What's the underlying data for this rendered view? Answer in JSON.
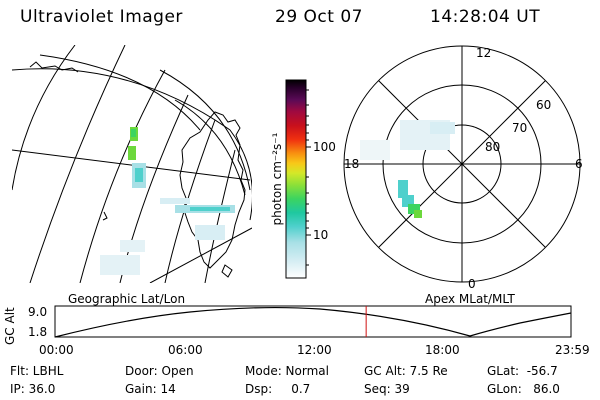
{
  "header": {
    "instrument": "Ultraviolet Imager",
    "date": "29 Oct 07",
    "time": "14:28:04 UT"
  },
  "colorbar": {
    "unit_label": "photon cm⁻²s⁻¹",
    "tick_100": "100",
    "tick_10": "10",
    "colors": [
      "#d8eef4",
      "#a8e0e6",
      "#4fd0cc",
      "#1fc8a0",
      "#3cd460",
      "#8ce038",
      "#d4e828",
      "#f8c818",
      "#f89010",
      "#f03010",
      "#c8101c",
      "#a00a40",
      "#5a0a56",
      "#28002a",
      "#000000"
    ]
  },
  "geo_map": {
    "label": "Geographic Lat/Lon"
  },
  "polar_map": {
    "label": "Apex MLat/MLT",
    "mlt_labels": {
      "top": "12",
      "right": "6",
      "bottom": "0",
      "left": "18"
    },
    "mlat_labels": [
      "60",
      "70",
      "80"
    ]
  },
  "orbit_plot": {
    "ylabel": "GC Alt",
    "ytick_high": "9.0",
    "ytick_low": "1.8",
    "xticks": [
      "00:00",
      "06:00",
      "12:00",
      "18:00",
      "23:59"
    ],
    "current_time_fraction": 0.603
  },
  "status": {
    "flt": "Flt: LBHL",
    "ip": "IP: 36.0",
    "door": "Door: Open",
    "gain": "Gain: 14",
    "mode": "Mode: Normal",
    "dsp": "Dsp:     0.7",
    "gc_alt": "GC Alt: 7.5 Re",
    "seq": "Seq: 39",
    "glat": "GLat:  -56.7",
    "glon": "GLon:   86.0"
  }
}
